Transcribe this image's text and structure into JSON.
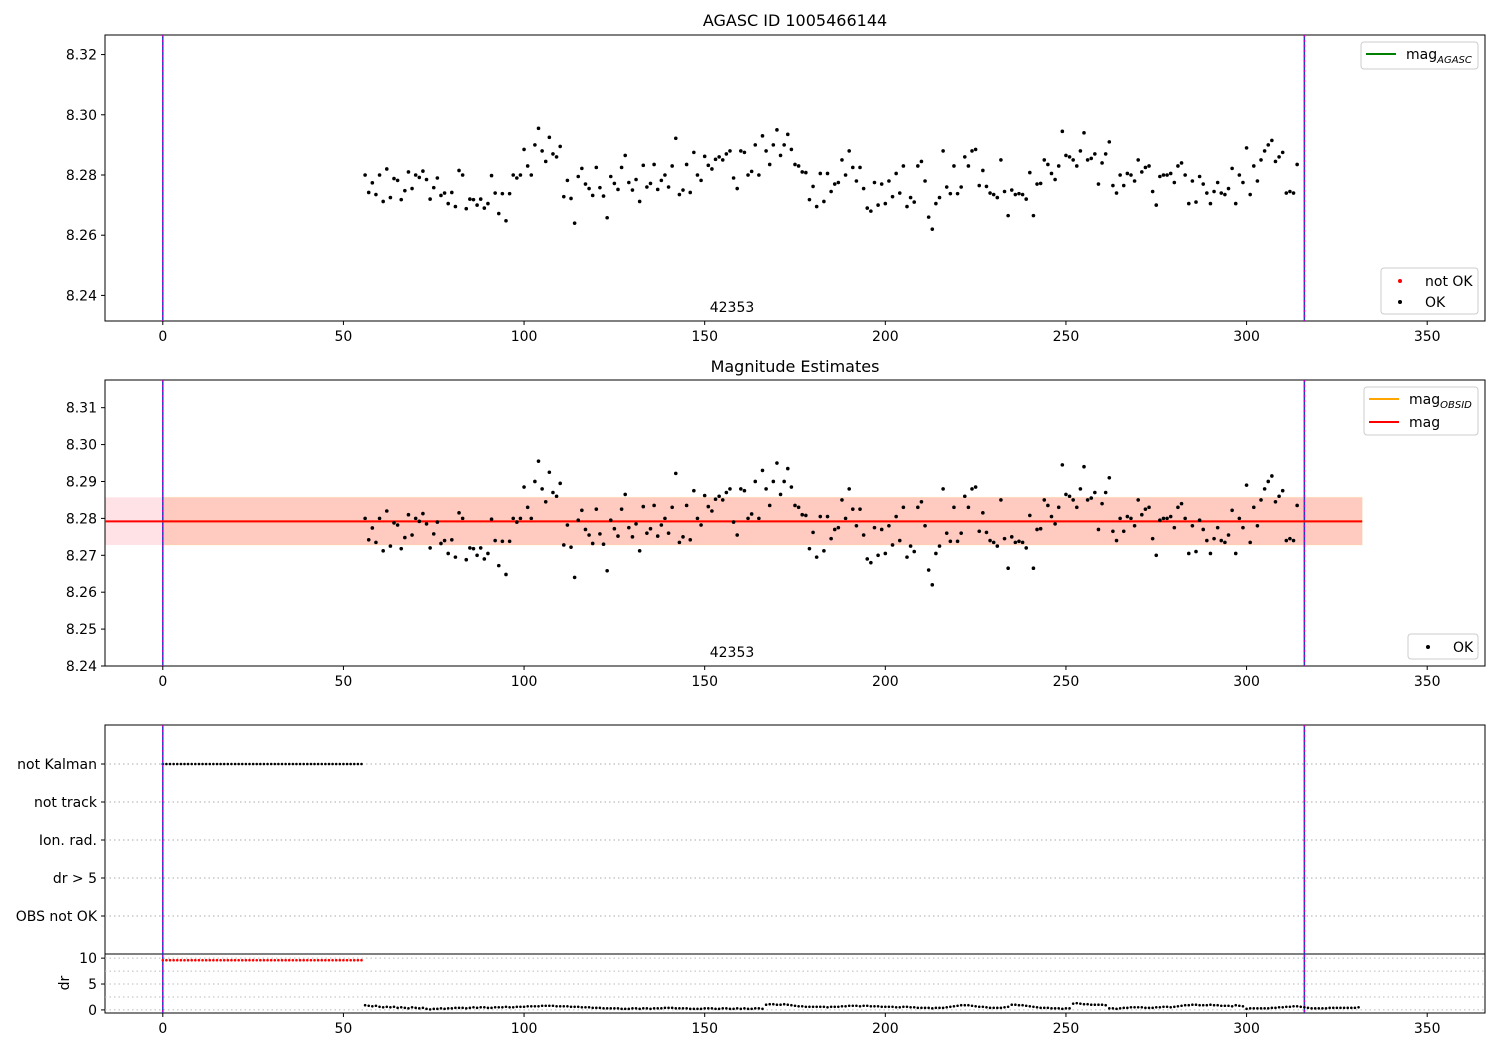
{
  "chart_data": [
    {
      "type": "scatter",
      "title": "AGASC ID 1005466144",
      "annotation": "42353",
      "xlim": [
        -16,
        366
      ],
      "ylim": [
        8.2315,
        8.3265
      ],
      "xticks": [
        0,
        50,
        100,
        150,
        200,
        250,
        300,
        350
      ],
      "yticks": [
        8.24,
        8.26,
        8.28,
        8.3,
        8.32
      ],
      "ytick_labels": [
        "8.24",
        "8.26",
        "8.28",
        "8.30",
        "8.32"
      ],
      "vlines": [
        0,
        316
      ],
      "legend_top": [
        {
          "label": "mag",
          "sub": "AGASC",
          "color": "#008000"
        }
      ],
      "legend_bottom": [
        {
          "label": "not OK",
          "color": "#ff0000"
        },
        {
          "label": "OK",
          "color": "#000000"
        }
      ],
      "series": [
        {
          "name": "OK",
          "color": "#000000",
          "x_start": 56,
          "x_step": 1,
          "values": [
            8.28,
            8.2742,
            8.2774,
            8.2735,
            8.28,
            8.2712,
            8.282,
            8.2725,
            8.2788,
            8.2782,
            8.2718,
            8.2748,
            8.281,
            8.2755,
            8.28,
            8.2792,
            8.2813,
            8.2785,
            8.272,
            8.2758,
            8.279,
            8.2732,
            8.274,
            8.2705,
            8.2742,
            8.2695,
            8.2815,
            8.28,
            8.2688,
            8.272,
            8.2718,
            8.27,
            8.272,
            8.269,
            8.2705,
            8.2798,
            8.274,
            8.2672,
            8.2738,
            8.2648,
            8.2738,
            8.28,
            8.279,
            8.28,
            8.2885,
            8.283,
            8.28,
            8.29,
            8.2955,
            8.288,
            8.2845,
            8.2925,
            8.287,
            8.286,
            8.2895,
            8.2728,
            8.2782,
            8.2722,
            8.264,
            8.2795,
            8.2822,
            8.277,
            8.2755,
            8.2732,
            8.2825,
            8.2758,
            8.273,
            8.2658,
            8.2795,
            8.2772,
            8.2752,
            8.2825,
            8.2865,
            8.2775,
            8.275,
            8.2785,
            8.2712,
            8.2832,
            8.276,
            8.2772,
            8.2835,
            8.2752,
            8.2782,
            8.28,
            8.276,
            8.283,
            8.2922,
            8.2735,
            8.275,
            8.2835,
            8.2742,
            8.2875,
            8.28,
            8.2782,
            8.2862,
            8.2832,
            8.282,
            8.2852,
            8.286,
            8.285,
            8.287,
            8.288,
            8.279,
            8.2755,
            8.288,
            8.2875,
            8.28,
            8.2812,
            8.29,
            8.28,
            8.293,
            8.288,
            8.2835,
            8.29,
            8.295,
            8.2865,
            8.29,
            8.2935,
            8.2885,
            8.2835,
            8.283,
            8.281,
            8.2808,
            8.2718,
            8.2762,
            8.2695,
            8.2805,
            8.2712,
            8.2805,
            8.2745,
            8.277,
            8.2775,
            8.285,
            8.28,
            8.288,
            8.2825,
            8.278,
            8.2825,
            8.2755,
            8.269,
            8.268,
            8.2775,
            8.27,
            8.277,
            8.2705,
            8.278,
            8.2728,
            8.2805,
            8.274,
            8.283,
            8.2695,
            8.2725,
            8.271,
            8.283,
            8.2845,
            8.278,
            8.266,
            8.262,
            8.2705,
            8.2725,
            8.288,
            8.276,
            8.2738,
            8.283,
            8.2738,
            8.276,
            8.286,
            8.283,
            8.288,
            8.2885,
            8.2765,
            8.2815,
            8.2762,
            8.274,
            8.2735,
            8.2725,
            8.285,
            8.2745,
            8.2665,
            8.275,
            8.2735,
            8.2738,
            8.2735,
            8.272,
            8.2808,
            8.2665,
            8.277,
            8.2772,
            8.285,
            8.2835,
            8.2805,
            8.2785,
            8.283,
            8.2945,
            8.2865,
            8.286,
            8.285,
            8.283,
            8.288,
            8.294,
            8.285,
            8.2855,
            8.287,
            8.277,
            8.284,
            8.287,
            8.291,
            8.2765,
            8.274,
            8.28,
            8.2765,
            8.2805,
            8.28,
            8.278,
            8.285,
            8.281,
            8.2825,
            8.283,
            8.2745,
            8.27,
            8.2795,
            8.28,
            8.28,
            8.2805,
            8.2775,
            8.283,
            8.284,
            8.28,
            8.2705,
            8.278,
            8.271,
            8.2795,
            8.277,
            8.274,
            8.2705,
            8.2745,
            8.2775,
            8.274,
            8.2735,
            8.2755,
            8.2822,
            8.2705,
            8.28,
            8.2775,
            8.289,
            8.2735,
            8.283,
            8.278,
            8.285,
            8.288,
            8.29,
            8.2915,
            8.2845,
            8.286,
            8.2875,
            8.274,
            8.2745,
            8.274,
            8.2835
          ]
        }
      ]
    },
    {
      "type": "scatter",
      "title": "Magnitude Estimates",
      "annotation": "42353",
      "xlim": [
        -16,
        366
      ],
      "ylim": [
        8.24,
        8.3175
      ],
      "xticks": [
        0,
        50,
        100,
        150,
        200,
        250,
        300,
        350
      ],
      "yticks": [
        8.24,
        8.25,
        8.26,
        8.27,
        8.28,
        8.29,
        8.3,
        8.31
      ],
      "ytick_labels": [
        "8.24",
        "8.25",
        "8.26",
        "8.27",
        "8.28",
        "8.29",
        "8.30",
        "8.31"
      ],
      "vlines": [
        0,
        316
      ],
      "mag": {
        "value": 8.2792,
        "color": "#ff0000",
        "band": [
          8.2728,
          8.2857
        ],
        "band_x": [
          -16,
          332
        ],
        "band_color": "#ffb6c1"
      },
      "mag_obsid": {
        "value": 8.2792,
        "color": "#ffa500",
        "band": [
          8.2728,
          8.2857
        ],
        "band_x": [
          0,
          332
        ]
      },
      "legend_top": [
        {
          "label": "mag",
          "sub": "OBSID",
          "color": "#ffa500"
        },
        {
          "label": "mag",
          "sub": "",
          "color": "#ff0000"
        }
      ],
      "legend_bottom": [
        {
          "label": "OK",
          "color": "#000000"
        }
      ],
      "series_ref": "same OK data as first panel"
    },
    {
      "type": "scatter",
      "title": "",
      "xlim": [
        -16,
        366
      ],
      "categories": [
        "not Kalman",
        "not track",
        "Ion. rad.",
        "dr > 5",
        "OBS not OK"
      ],
      "flag_series": [
        {
          "name": "not Kalman",
          "color": "#000000",
          "x_range": [
            0,
            55
          ]
        }
      ],
      "dr": {
        "ylabel": "dr",
        "yticks": [
          0,
          5,
          10
        ],
        "ytick_labels": [
          "0",
          "5",
          "10"
        ],
        "ylim": [
          -0.6,
          10.8
        ],
        "red_points": {
          "value": 9.6,
          "x_range": [
            0,
            55
          ],
          "color": "#ff0000"
        },
        "black_values_x_start": 56,
        "black_values": [
          0.9,
          0.8,
          0.7,
          0.8,
          0.6,
          0.5,
          0.6,
          0.5,
          0.6,
          0.4,
          0.5,
          0.4,
          0.3,
          0.5,
          0.4,
          0.3,
          0.4,
          0.2,
          0.1,
          0.2,
          0.2,
          0.3,
          0.2,
          0.3,
          0.3,
          0.4,
          0.4,
          0.4,
          0.3,
          0.4,
          0.5,
          0.4,
          0.5,
          0.5,
          0.4,
          0.4,
          0.5,
          0.5,
          0.5,
          0.6,
          0.5,
          0.5,
          0.6,
          0.6,
          0.6,
          0.7,
          0.7,
          0.7,
          0.7,
          0.8,
          0.8,
          0.8,
          0.8,
          0.7,
          0.7,
          0.7,
          0.7,
          0.6,
          0.6,
          0.6,
          0.5,
          0.5,
          0.5,
          0.4,
          0.4,
          0.4,
          0.3,
          0.3,
          0.3,
          0.3,
          0.3,
          0.2,
          0.2,
          0.2,
          0.3,
          0.3,
          0.2,
          0.3,
          0.3,
          0.2,
          0.3,
          0.3,
          0.3,
          0.4,
          0.4,
          0.4,
          0.3,
          0.3,
          0.3,
          0.3,
          0.2,
          0.2,
          0.2,
          0.2,
          0.3,
          0.3,
          0.3,
          0.2,
          0.2,
          0.3,
          0.3,
          0.2,
          0.2,
          0.3,
          0.2,
          0.3,
          0.2,
          0.2,
          0.3,
          0.3,
          0.2,
          1.0,
          1.1,
          1.1,
          1.0,
          1.0,
          1.1,
          1.0,
          0.9,
          0.8,
          0.7,
          0.7,
          0.6,
          0.6,
          0.6,
          0.6,
          0.6,
          0.6,
          0.5,
          0.6,
          0.6,
          0.6,
          0.7,
          0.7,
          0.8,
          0.8,
          0.8,
          0.7,
          0.8,
          0.8,
          0.7,
          0.7,
          0.7,
          0.6,
          0.6,
          0.6,
          0.6,
          0.5,
          0.5,
          0.6,
          0.6,
          0.5,
          0.5,
          0.4,
          0.4,
          0.4,
          0.4,
          0.3,
          0.4,
          0.4,
          0.4,
          0.5,
          0.6,
          0.7,
          0.8,
          0.9,
          0.9,
          0.9,
          0.8,
          0.7,
          0.6,
          0.6,
          0.5,
          0.4,
          0.4,
          0.4,
          0.4,
          0.5,
          0.6,
          1.0,
          1.0,
          0.9,
          0.9,
          0.8,
          0.7,
          0.6,
          0.5,
          0.4,
          0.4,
          0.4,
          0.3,
          0.3,
          0.3,
          0.2,
          0.3,
          0.3,
          1.2,
          1.3,
          1.2,
          1.1,
          1.1,
          1.0,
          1.0,
          1.0,
          1.0,
          0.9,
          0.3,
          0.3,
          0.2,
          0.3,
          0.4,
          0.4,
          0.5,
          0.5,
          0.5,
          0.5,
          0.4,
          0.4,
          0.4,
          0.5,
          0.5,
          0.6,
          0.6,
          0.5,
          0.6,
          0.7,
          0.8,
          0.9,
          0.9,
          1.0,
          1.0,
          0.9,
          0.9,
          0.9,
          1.0,
          0.9,
          0.9,
          0.8,
          0.8,
          0.8,
          0.7,
          0.9,
          0.8,
          0.7,
          0.2,
          0.3,
          0.3,
          0.3,
          0.3,
          0.3,
          0.3,
          0.4,
          0.4,
          0.5,
          0.5,
          0.6,
          0.6,
          0.7,
          0.7,
          0.6,
          0.5,
          0.4,
          0.3,
          0.3,
          0.3,
          0.3,
          0.3,
          0.4,
          0.4,
          0.4,
          0.4,
          0.4,
          0.4,
          0.4,
          0.4,
          0.5
        ]
      },
      "vlines": [
        0,
        316
      ]
    }
  ]
}
